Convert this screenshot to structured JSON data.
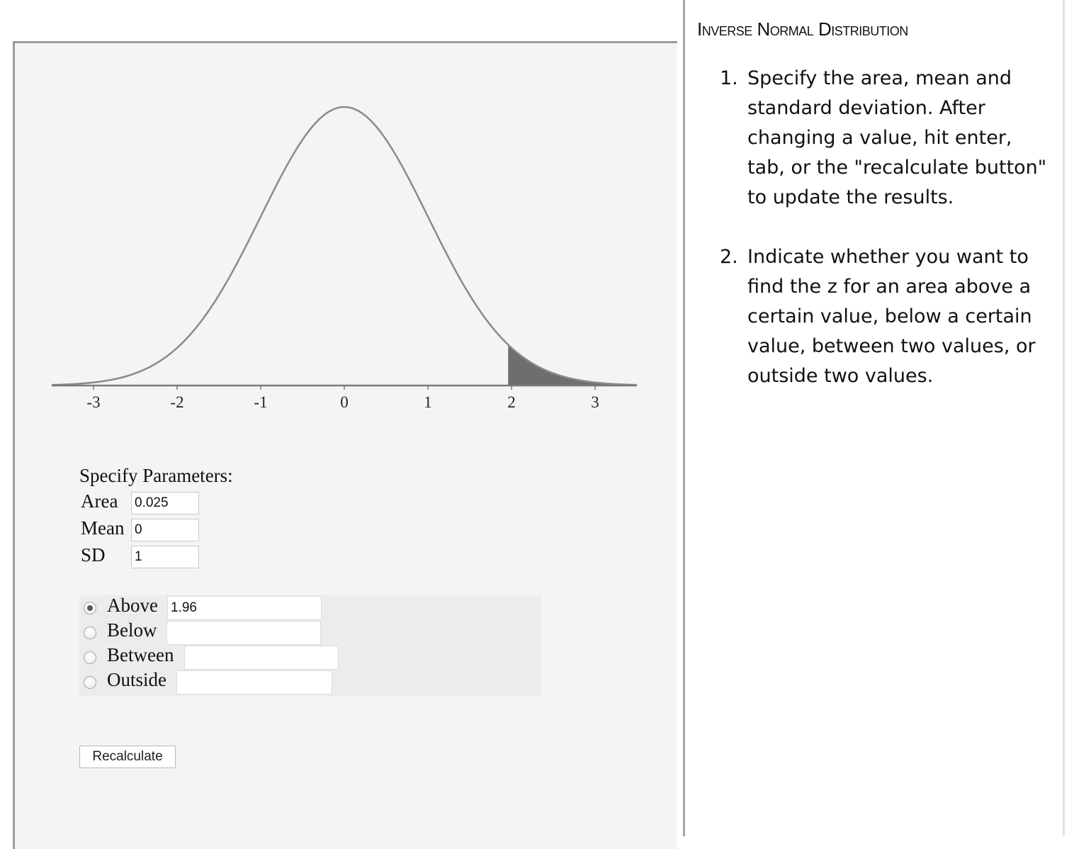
{
  "sidebar": {
    "title": "Inverse Normal Distribution",
    "steps": [
      {
        "number": "1.",
        "text": "Specify the area, mean and standard deviation. After changing a value, hit enter, tab, or the \"recalculate button\" to update the results."
      },
      {
        "number": "2.",
        "text": "Indicate whether you want to find the z for an area above a certain value, below a certain value, between two values, or outside two values."
      }
    ]
  },
  "params": {
    "title": "Specify Parameters:",
    "area_label": "Area",
    "area_value": "0.025",
    "mean_label": "Mean",
    "mean_value": "0",
    "sd_label": "SD",
    "sd_value": "1"
  },
  "options": [
    {
      "label": "Above",
      "value": "1.96",
      "checked": true
    },
    {
      "label": "Below",
      "value": "",
      "checked": false
    },
    {
      "label": "Between",
      "value": "",
      "checked": false
    },
    {
      "label": "Outside",
      "value": "",
      "checked": false
    }
  ],
  "recalculate_label": "Recalculate",
  "colors": {
    "panel_bg": "#f4f4f4",
    "curve": "#8a8a8a",
    "shade": "#6e6e6e",
    "axis": "#7a7a7a"
  },
  "chart_data": {
    "type": "area",
    "distribution": "normal",
    "mean": 0,
    "sd": 1,
    "xlim": [
      -3.5,
      3.5
    ],
    "x_ticks": [
      -3,
      -2,
      -1,
      0,
      1,
      2,
      3
    ],
    "x_tick_labels": [
      "-3",
      "-2",
      "-1",
      "0",
      "1",
      "2",
      "3"
    ],
    "shaded_region": {
      "from": 1.96,
      "to": 3.5
    },
    "grid": false,
    "legend": "none"
  }
}
